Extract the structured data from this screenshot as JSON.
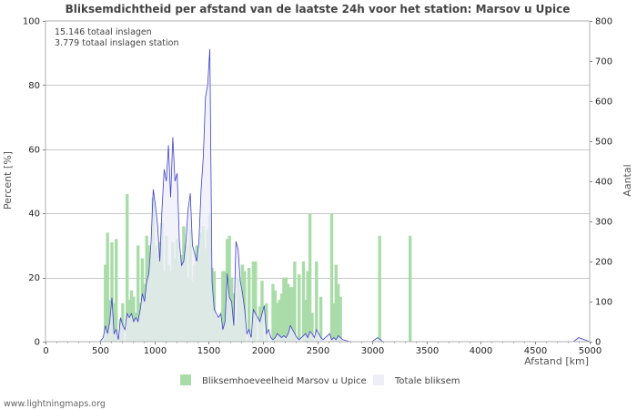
{
  "chart_data": {
    "type": "bar",
    "title": "Bliksemdichtheid per afstand van de laatste 24h voor het station: Marsov u Upice",
    "annotations": [
      "15.146 totaal inslagen",
      "3.779 totaal inslagen station"
    ],
    "xlabel": "Afstand   [km]",
    "ylabel_left": "Percent   [%]",
    "ylabel_right": "Aantal",
    "xlim": [
      0,
      5000
    ],
    "ylim_left": [
      0,
      100
    ],
    "ylim_right": [
      0,
      800
    ],
    "x_ticks": [
      0,
      500,
      1000,
      1500,
      2000,
      2500,
      3000,
      3500,
      4000,
      4500,
      5000
    ],
    "y_left_ticks": [
      0,
      20,
      40,
      60,
      80,
      100
    ],
    "y_right_ticks": [
      0,
      100,
      200,
      300,
      400,
      500,
      600,
      700,
      800
    ],
    "grid": true,
    "legend_position": "bottom",
    "series": [
      {
        "name": "Bliksemhoeveelheid Marsov u Upice",
        "axis": "left",
        "kind": "bar",
        "color": "#aadcaa",
        "x": [
          550,
          570,
          590,
          610,
          630,
          650,
          690,
          710,
          750,
          770,
          790,
          810,
          830,
          850,
          870,
          890,
          910,
          930,
          950,
          970,
          990,
          1010,
          1030,
          1050,
          1070,
          1090,
          1110,
          1130,
          1150,
          1170,
          1190,
          1210,
          1230,
          1250,
          1270,
          1290,
          1310,
          1330,
          1350,
          1370,
          1390,
          1410,
          1430,
          1450,
          1470,
          1490,
          1510,
          1530,
          1550,
          1570,
          1590,
          1610,
          1630,
          1650,
          1670,
          1690,
          1710,
          1730,
          1750,
          1770,
          1790,
          1810,
          1830,
          1870,
          1910,
          1930,
          1970,
          1990,
          2030,
          2090,
          2110,
          2130,
          2150,
          2170,
          2190,
          2210,
          2230,
          2250,
          2270,
          2290,
          2330,
          2370,
          2390,
          2410,
          2430,
          2450,
          2490,
          2530,
          2630,
          2650,
          2670,
          2690,
          2710,
          3070,
          3350
        ],
        "values": [
          24,
          34,
          13,
          31,
          12,
          32,
          7,
          12,
          46,
          13,
          16,
          14,
          9,
          30,
          12,
          26,
          18,
          33,
          30,
          28,
          45,
          30,
          27,
          31,
          37,
          22,
          33,
          24,
          22,
          31,
          26,
          32,
          25,
          27,
          36,
          30,
          20,
          35,
          19,
          24,
          30,
          27,
          34,
          36,
          29,
          35,
          40,
          23,
          22,
          8,
          7,
          5,
          22,
          22,
          32,
          33,
          20,
          15,
          6,
          20,
          16,
          24,
          22,
          23,
          25,
          25,
          11,
          19,
          12,
          18,
          16,
          12,
          13,
          15,
          20,
          20,
          18,
          17,
          17,
          25,
          21,
          25,
          13,
          22,
          40,
          9,
          25,
          14,
          40,
          12,
          24,
          18,
          14,
          33,
          33
        ]
      },
      {
        "name": "Totale bliksem",
        "axis": "right",
        "kind": "area",
        "color": "#eeeef8",
        "line_color": "#4040cc",
        "x": [
          0,
          500,
          530,
          550,
          570,
          590,
          610,
          630,
          650,
          670,
          690,
          710,
          730,
          750,
          770,
          790,
          810,
          830,
          850,
          870,
          890,
          910,
          930,
          950,
          970,
          990,
          1010,
          1030,
          1050,
          1070,
          1090,
          1110,
          1130,
          1150,
          1170,
          1190,
          1210,
          1230,
          1250,
          1270,
          1290,
          1310,
          1330,
          1350,
          1370,
          1390,
          1410,
          1430,
          1450,
          1470,
          1490,
          1510,
          1530,
          1550,
          1570,
          1590,
          1610,
          1630,
          1650,
          1670,
          1690,
          1710,
          1730,
          1750,
          1770,
          1790,
          1810,
          1830,
          1850,
          1870,
          1890,
          1910,
          1930,
          1950,
          1970,
          1990,
          2010,
          2030,
          2050,
          2070,
          2090,
          2110,
          2130,
          2150,
          2170,
          2190,
          2210,
          2230,
          2250,
          2270,
          2290,
          2310,
          2330,
          2350,
          2370,
          2390,
          2410,
          2430,
          2450,
          2470,
          2490,
          2510,
          2530,
          2550,
          2570,
          2590,
          2610,
          2630,
          2650,
          2670,
          2690,
          2710,
          2730,
          2800,
          3000,
          3050,
          3100,
          3200,
          4000,
          4850,
          4900,
          4950,
          5000
        ],
        "values": [
          0,
          0,
          10,
          40,
          20,
          50,
          110,
          20,
          30,
          5,
          60,
          40,
          30,
          70,
          60,
          70,
          50,
          60,
          50,
          80,
          120,
          100,
          150,
          170,
          250,
          380,
          340,
          290,
          200,
          330,
          430,
          400,
          490,
          360,
          510,
          400,
          420,
          250,
          190,
          200,
          250,
          330,
          370,
          240,
          220,
          200,
          250,
          380,
          460,
          610,
          640,
          730,
          150,
          80,
          70,
          60,
          70,
          30,
          50,
          170,
          110,
          100,
          40,
          250,
          230,
          150,
          120,
          80,
          20,
          30,
          10,
          80,
          70,
          60,
          50,
          70,
          90,
          20,
          30,
          10,
          5,
          10,
          20,
          15,
          10,
          15,
          10,
          20,
          40,
          30,
          20,
          10,
          5,
          10,
          15,
          20,
          10,
          25,
          20,
          10,
          30,
          20,
          10,
          5,
          10,
          15,
          20,
          5,
          10,
          5,
          15,
          10,
          5,
          0,
          0,
          10,
          0,
          0,
          0,
          0,
          10,
          5,
          0
        ]
      }
    ]
  },
  "footer": "www.lightningmaps.org"
}
